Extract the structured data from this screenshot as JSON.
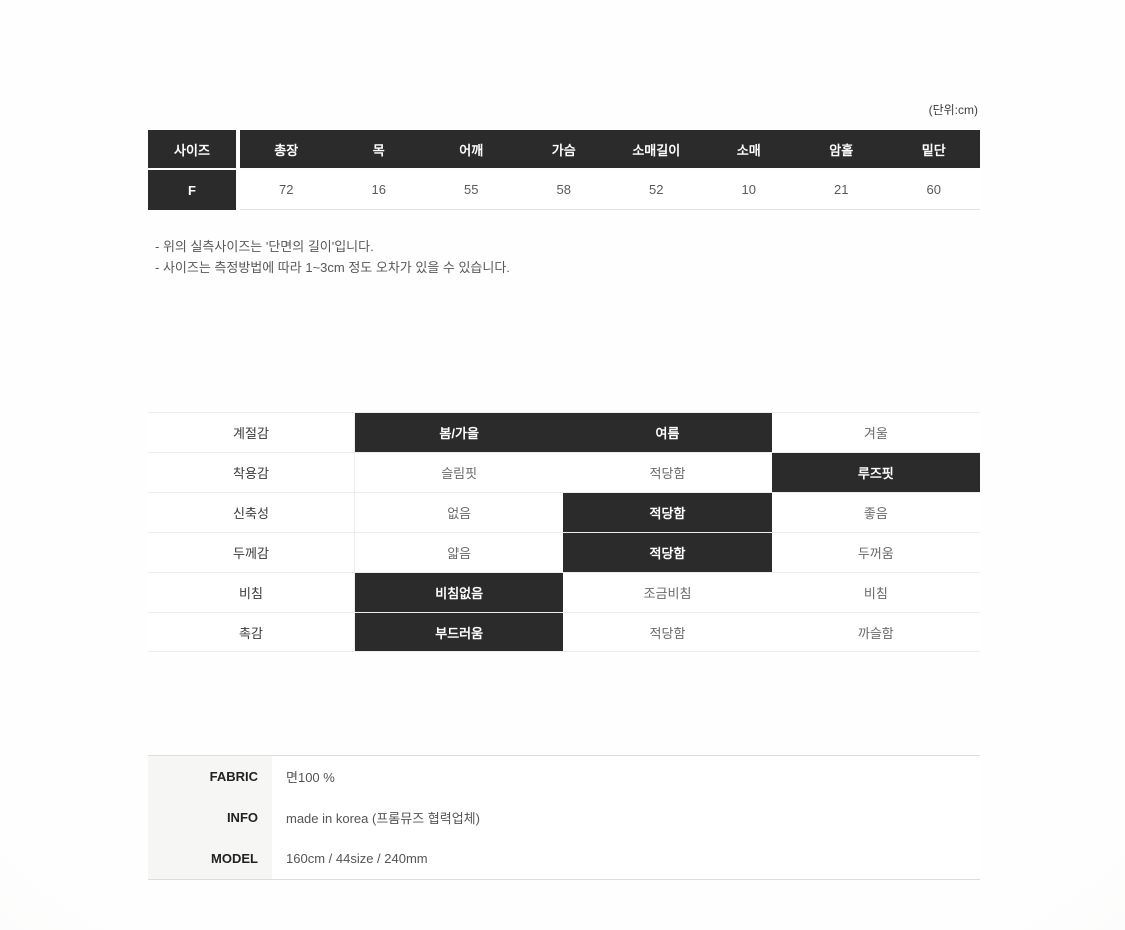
{
  "unit_label": "(단위:cm)",
  "size_table": {
    "columns": [
      "사이즈",
      "총장",
      "목",
      "어깨",
      "가슴",
      "소매길이",
      "소매",
      "암홀",
      "밑단"
    ],
    "rows": [
      {
        "size": "F",
        "values": [
          "72",
          "16",
          "55",
          "58",
          "52",
          "10",
          "21",
          "60"
        ]
      }
    ]
  },
  "notes": [
    "- 위의 실측사이즈는 '단면의 길이'입니다.",
    "- 사이즈는 측정방법에 따라 1~3cm 정도 오차가 있을 수 있습니다."
  ],
  "feature_table": {
    "rows": [
      {
        "label": "계절감",
        "options": [
          "봄/가을",
          "여름",
          "겨울"
        ],
        "selected": [
          0,
          1
        ]
      },
      {
        "label": "착용감",
        "options": [
          "슬림핏",
          "적당함",
          "루즈핏"
        ],
        "selected": [
          2
        ]
      },
      {
        "label": "신축성",
        "options": [
          "없음",
          "적당함",
          "좋음"
        ],
        "selected": [
          1
        ]
      },
      {
        "label": "두께감",
        "options": [
          "얇음",
          "적당함",
          "두꺼움"
        ],
        "selected": [
          1
        ]
      },
      {
        "label": "비침",
        "options": [
          "비침없음",
          "조금비침",
          "비침"
        ],
        "selected": [
          0
        ]
      },
      {
        "label": "촉감",
        "options": [
          "부드러움",
          "적당함",
          "까슬함"
        ],
        "selected": [
          0
        ]
      }
    ]
  },
  "product_info": {
    "rows": [
      {
        "label": "FABRIC",
        "value": "면100 %"
      },
      {
        "label": "INFO",
        "value": "made in korea (프롬뮤즈 협력업체)"
      },
      {
        "label": "MODEL",
        "value": "160cm / 44size / 240mm"
      }
    ]
  },
  "colors": {
    "highlight": "#2b2b2b",
    "divider": "#ececec",
    "muted_text": "#6a6a6a",
    "info_label_bg": "#f6f6f4"
  }
}
